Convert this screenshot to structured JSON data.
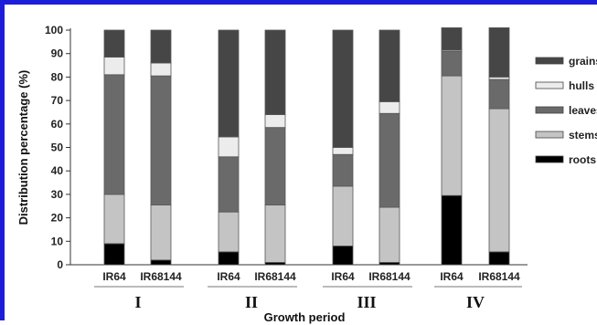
{
  "chart_data": {
    "type": "bar",
    "stacked": true,
    "xlabel": "Growth period",
    "ylabel": "Distribution percentage (%)",
    "ylim": [
      0,
      100
    ],
    "yticks": [
      0,
      10,
      20,
      30,
      40,
      50,
      60,
      70,
      80,
      90,
      100
    ],
    "groups": [
      "I",
      "II",
      "III",
      "IV"
    ],
    "categories": [
      "IR64",
      "IR68144",
      "IR64",
      "IR68144",
      "IR64",
      "IR68144",
      "IR64",
      "IR68144"
    ],
    "legend_position": "right",
    "series": [
      {
        "name": "roots",
        "color": "#000000",
        "values": [
          9,
          2,
          5.5,
          1,
          8,
          1,
          29.5,
          5.5
        ]
      },
      {
        "name": "stems",
        "color": "#c4c4c4",
        "values": [
          21,
          23.5,
          17,
          24.5,
          25.5,
          23.5,
          51,
          61
        ]
      },
      {
        "name": "leaves",
        "color": "#6a6a6a",
        "values": [
          51,
          55,
          23.5,
          33,
          13.5,
          40,
          10.5,
          12.5
        ]
      },
      {
        "name": "hulls",
        "color": "#ececec",
        "values": [
          7.5,
          5.5,
          8.5,
          5.5,
          3,
          5,
          0.5,
          1
        ]
      },
      {
        "name": "grains",
        "color": "#464646",
        "values": [
          11.5,
          14,
          45.5,
          36,
          50,
          30.5,
          9.5,
          21
        ]
      }
    ]
  }
}
